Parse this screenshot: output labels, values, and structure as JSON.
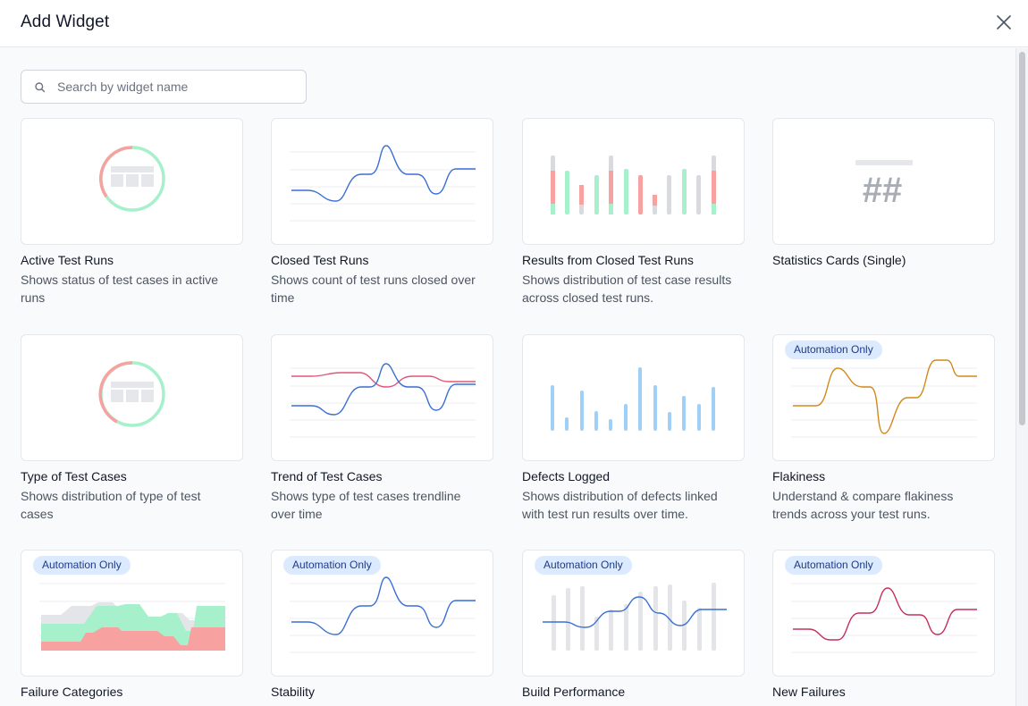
{
  "dialog": {
    "title": "Add Widget"
  },
  "search": {
    "placeholder": "Search by widget name",
    "value": ""
  },
  "badge_label": "Automation Only",
  "widgets": [
    {
      "name": "Active Test Runs",
      "description": "Shows status of test cases in active runs",
      "automation_only": false
    },
    {
      "name": "Closed Test Runs",
      "description": "Shows count of test runs closed over time",
      "automation_only": false
    },
    {
      "name": "Results from Closed Test Runs",
      "description": "Shows distribution of test case results across closed test runs.",
      "automation_only": false
    },
    {
      "name": "Statistics Cards (Single)",
      "description": "",
      "automation_only": false,
      "preview_text": "##"
    },
    {
      "name": "Type of Test Cases",
      "description": "Shows distribution of type of test cases",
      "automation_only": false
    },
    {
      "name": "Trend of Test Cases",
      "description": "Shows type of test cases trendline over time",
      "automation_only": false
    },
    {
      "name": "Defects Logged",
      "description": "Shows distribution of defects linked with test run results over time.",
      "automation_only": false
    },
    {
      "name": "Flakiness",
      "description": "Understand & compare flakiness trends across your test runs.",
      "automation_only": true
    },
    {
      "name": "Failure Categories",
      "description": "",
      "automation_only": true
    },
    {
      "name": "Stability",
      "description": "",
      "automation_only": true
    },
    {
      "name": "Build Performance",
      "description": "",
      "automation_only": true
    },
    {
      "name": "New Failures",
      "description": "",
      "automation_only": true
    }
  ],
  "colors": {
    "blue_line": "#3b6fd4",
    "red_line": "#e0567a",
    "orange_line": "#d18a1c",
    "crimson_line": "#c5305a",
    "green": "#a7f0cc",
    "red": "#f7a1a1",
    "gray": "#d8dadd",
    "light_blue": "#9fd0f7"
  }
}
